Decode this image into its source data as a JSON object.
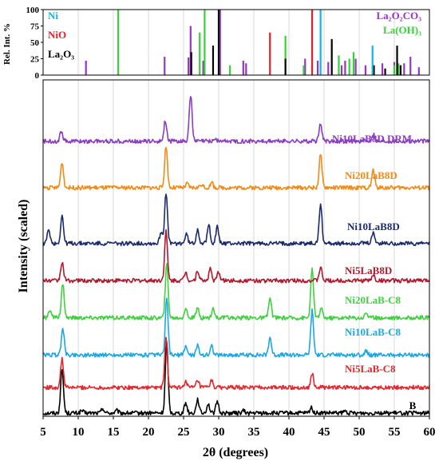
{
  "chart_data": [
    {
      "type": "bar",
      "title": "",
      "ylabel": "Rel. Int. %",
      "ylim": [
        0,
        100
      ],
      "xlim": [
        5,
        60
      ],
      "yticks": [
        "0",
        "25",
        "50",
        "75",
        "100"
      ],
      "grid": "vertical",
      "legend_position": "top-left and top-right",
      "legend": [
        {
          "name": "Ni",
          "color": "#12b3e8"
        },
        {
          "name": "NiO",
          "color": "#ee1c24"
        },
        {
          "name": "La₂O₃",
          "color": "#000000"
        },
        {
          "name": "La₂O₂CO₃",
          "color": "#9a33c9"
        },
        {
          "name": "La(OH)₃",
          "color": "#31d431"
        }
      ],
      "series": [
        {
          "name": "La₂O₂CO₃",
          "color": "#9a33c9",
          "x": [
            11.1,
            22.3,
            25.7,
            26.0,
            27.8,
            30.2,
            33.5,
            33.9,
            42.3,
            44.1,
            45.6,
            47.5,
            48.0,
            49.5,
            50.9,
            53.3,
            55.0,
            56.4,
            57.3,
            58.5
          ],
          "y": [
            22,
            28,
            27,
            75,
            22,
            100,
            22,
            18,
            25,
            22,
            20,
            15,
            22,
            25,
            15,
            18,
            20,
            18,
            28,
            12
          ]
        },
        {
          "name": "La(OH)₃",
          "color": "#31d431",
          "x": [
            15.7,
            27.3,
            28.0,
            31.6,
            39.5,
            42.1,
            47.1,
            48.6,
            49.2,
            55.0,
            55.6
          ],
          "y": [
            100,
            65,
            100,
            15,
            60,
            15,
            30,
            25,
            35,
            15,
            18
          ]
        },
        {
          "name": "La₂O₃",
          "color": "#000000",
          "x": [
            26.1,
            29.2,
            30.0,
            39.5,
            46.1,
            52.1,
            53.7,
            55.4,
            55.9
          ],
          "y": [
            35,
            45,
            100,
            25,
            55,
            15,
            10,
            45,
            15
          ]
        },
        {
          "name": "NiO",
          "color": "#ee1c24",
          "x": [
            37.3,
            43.3
          ],
          "y": [
            65,
            100
          ]
        },
        {
          "name": "Ni",
          "color": "#12b3e8",
          "x": [
            44.5,
            51.9
          ],
          "y": [
            100,
            45
          ]
        }
      ]
    },
    {
      "type": "line",
      "title": "",
      "xlabel": "2θ (degrees)",
      "ylabel": "Intensity (scaled)",
      "xlim": [
        5,
        60
      ],
      "xticks": [
        "5",
        "10",
        "15",
        "20",
        "25",
        "30",
        "35",
        "40",
        "45",
        "50",
        "55",
        "60"
      ],
      "grid": "vertical",
      "annotation": "B",
      "series": [
        {
          "name": "Ni10LaB8D DRM",
          "color": "#8b3dbf",
          "offset": 5.85,
          "peaks": [
            {
              "x": 7.6,
              "h": 0.22
            },
            {
              "x": 22.4,
              "h": 0.45
            },
            {
              "x": 26.0,
              "h": 1.0
            },
            {
              "x": 29.5,
              "h": 0.05
            },
            {
              "x": 44.5,
              "h": 0.38
            },
            {
              "x": 52.0,
              "h": 0.16
            }
          ]
        },
        {
          "name": "Ni20LaB8D",
          "color": "#f28a17",
          "offset": 4.85,
          "peaks": [
            {
              "x": 7.7,
              "h": 0.55
            },
            {
              "x": 22.5,
              "h": 0.9
            },
            {
              "x": 25.5,
              "h": 0.08
            },
            {
              "x": 27.5,
              "h": 0.07
            },
            {
              "x": 29.0,
              "h": 0.1
            },
            {
              "x": 44.5,
              "h": 0.72
            },
            {
              "x": 52.0,
              "h": 0.38
            }
          ]
        },
        {
          "name": "Ni10LaB8D",
          "color": "#1b2a6b",
          "offset": 3.65,
          "peaks": [
            {
              "x": 5.8,
              "h": 0.3
            },
            {
              "x": 7.7,
              "h": 0.6
            },
            {
              "x": 21.8,
              "h": 0.25
            },
            {
              "x": 22.5,
              "h": 1.1
            },
            {
              "x": 25.4,
              "h": 0.2
            },
            {
              "x": 27.0,
              "h": 0.3
            },
            {
              "x": 28.6,
              "h": 0.4
            },
            {
              "x": 29.8,
              "h": 0.35
            },
            {
              "x": 44.5,
              "h": 0.85
            },
            {
              "x": 52.0,
              "h": 0.25
            }
          ]
        },
        {
          "name": "Ni5LaB8D",
          "color": "#b0192c",
          "offset": 2.85,
          "peaks": [
            {
              "x": 7.7,
              "h": 0.4
            },
            {
              "x": 22.5,
              "h": 1.05
            },
            {
              "x": 25.3,
              "h": 0.18
            },
            {
              "x": 27.0,
              "h": 0.22
            },
            {
              "x": 28.8,
              "h": 0.25
            },
            {
              "x": 30.0,
              "h": 0.18
            },
            {
              "x": 44.5,
              "h": 0.28
            },
            {
              "x": 52.0,
              "h": 0.12
            }
          ]
        },
        {
          "name": "Ni20LaB-C8",
          "color": "#3fd13f",
          "offset": 2.05,
          "peaks": [
            {
              "x": 6.0,
              "h": 0.18
            },
            {
              "x": 7.8,
              "h": 0.75
            },
            {
              "x": 22.6,
              "h": 1.15
            },
            {
              "x": 25.3,
              "h": 0.2
            },
            {
              "x": 27.0,
              "h": 0.2
            },
            {
              "x": 29.2,
              "h": 0.2
            },
            {
              "x": 37.3,
              "h": 0.42
            },
            {
              "x": 43.3,
              "h": 1.05
            },
            {
              "x": 44.6,
              "h": 0.2
            },
            {
              "x": 51.0,
              "h": 0.12
            }
          ]
        },
        {
          "name": "Ni10LaB-C8",
          "color": "#1aa7e6",
          "offset": 1.25,
          "peaks": [
            {
              "x": 7.8,
              "h": 0.6
            },
            {
              "x": 22.6,
              "h": 1.2
            },
            {
              "x": 25.3,
              "h": 0.2
            },
            {
              "x": 27.0,
              "h": 0.2
            },
            {
              "x": 29.0,
              "h": 0.2
            },
            {
              "x": 37.3,
              "h": 0.38
            },
            {
              "x": 43.3,
              "h": 0.95
            },
            {
              "x": 51.0,
              "h": 0.1
            }
          ]
        },
        {
          "name": "Ni5LaB-C8",
          "color": "#e6262c",
          "offset": 0.55,
          "peaks": [
            {
              "x": 7.7,
              "h": 0.62
            },
            {
              "x": 22.5,
              "h": 1.05
            },
            {
              "x": 25.3,
              "h": 0.15
            },
            {
              "x": 27.0,
              "h": 0.15
            },
            {
              "x": 29.0,
              "h": 0.15
            },
            {
              "x": 43.3,
              "h": 0.3
            }
          ]
        },
        {
          "name": "",
          "color": "#000000",
          "offset": 0.0,
          "peaks": [
            {
              "x": 7.7,
              "h": 0.95
            },
            {
              "x": 10.5,
              "h": 0.05
            },
            {
              "x": 13.5,
              "h": 0.1
            },
            {
              "x": 15.5,
              "h": 0.05
            },
            {
              "x": 22.6,
              "h": 1.5
            },
            {
              "x": 25.3,
              "h": 0.22
            },
            {
              "x": 27.0,
              "h": 0.3
            },
            {
              "x": 28.5,
              "h": 0.2
            },
            {
              "x": 29.8,
              "h": 0.25
            },
            {
              "x": 33.5,
              "h": 0.05
            },
            {
              "x": 43.2,
              "h": 0.12
            },
            {
              "x": 48.0,
              "h": 0.04
            },
            {
              "x": 52.5,
              "h": 0.03
            }
          ]
        }
      ]
    }
  ]
}
